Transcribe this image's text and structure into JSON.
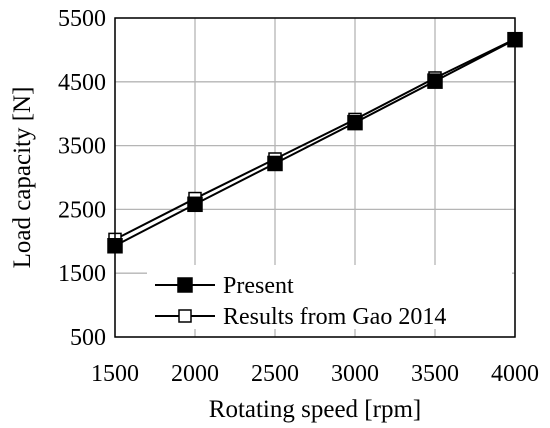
{
  "chart_data": {
    "type": "line",
    "xlabel": "Rotating speed [rpm]",
    "ylabel": "Load capacity [N]",
    "xlim": [
      1500,
      4000
    ],
    "ylim": [
      500,
      5500
    ],
    "xticks": [
      1500,
      2000,
      2500,
      3000,
      3500,
      4000
    ],
    "yticks": [
      500,
      1500,
      2500,
      3500,
      4500,
      5500
    ],
    "grid": "vertical and horizontal",
    "legend_position": "bottom-right",
    "x": [
      1500,
      2000,
      2500,
      3000,
      3500,
      4000
    ],
    "series": [
      {
        "name": "Present",
        "marker": "filled-square",
        "color": "#000000",
        "values": [
          1930,
          2580,
          3220,
          3860,
          4510,
          5160
        ]
      },
      {
        "name": "Results from Gao 2014",
        "marker": "open-square",
        "color": "#000000",
        "values": [
          2030,
          2670,
          3290,
          3910,
          4560,
          5170
        ]
      }
    ]
  }
}
